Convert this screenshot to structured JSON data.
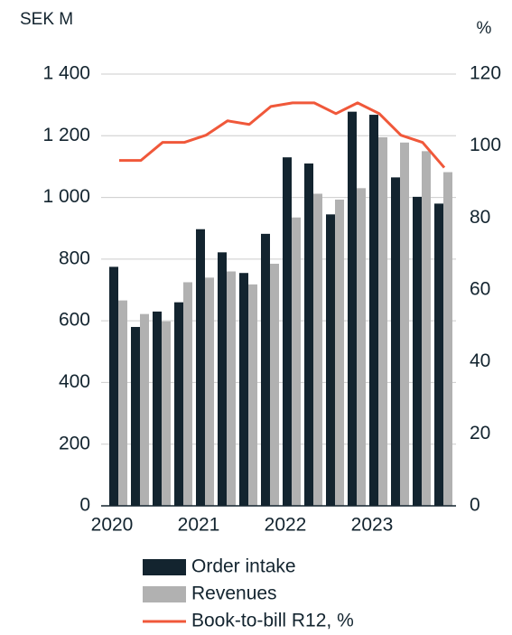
{
  "chart_data": {
    "type": "bar",
    "y_label": "SEK M",
    "y2_label": "%",
    "categories": [
      "2020",
      null,
      null,
      null,
      "2021",
      null,
      null,
      null,
      "2022",
      null,
      null,
      null,
      "2023",
      null,
      null,
      null
    ],
    "series": [
      {
        "name": "Order intake",
        "color": "#13242f",
        "values": [
          775,
          580,
          630,
          660,
          897,
          822,
          755,
          882,
          1130,
          1110,
          945,
          1278,
          1268,
          1065,
          1002,
          980
        ]
      },
      {
        "name": "Revenues",
        "color": "#b1b1b1",
        "values": [
          666,
          622,
          598,
          725,
          740,
          760,
          718,
          785,
          935,
          1012,
          993,
          1030,
          1195,
          1178,
          1150,
          1082
        ]
      },
      {
        "name": "Book-to-bill R12, %",
        "color": "#f0583a",
        "type": "line",
        "axis": "y2",
        "values": [
          96,
          96,
          101,
          101,
          103,
          107,
          106,
          111,
          112,
          112,
          109,
          112,
          109,
          103,
          101,
          94
        ]
      }
    ],
    "ylim": [
      0,
      1400
    ],
    "yticks": [
      0,
      200,
      400,
      600,
      800,
      {
        "value": 1000,
        "label": "1 000"
      },
      {
        "value": 1200,
        "label": "1 200"
      },
      {
        "value": 1400,
        "label": "1 400"
      }
    ],
    "y2lim": [
      0,
      120
    ],
    "y2ticks": [
      0,
      20,
      40,
      60,
      80,
      100,
      120
    ]
  }
}
